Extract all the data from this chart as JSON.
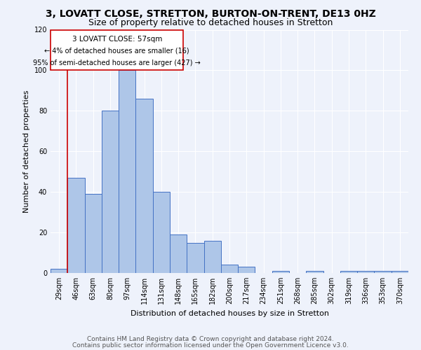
{
  "title": "3, LOVATT CLOSE, STRETTON, BURTON-ON-TRENT, DE13 0HZ",
  "subtitle": "Size of property relative to detached houses in Stretton",
  "xlabel": "Distribution of detached houses by size in Stretton",
  "ylabel": "Number of detached properties",
  "categories": [
    "29sqm",
    "46sqm",
    "63sqm",
    "80sqm",
    "97sqm",
    "114sqm",
    "131sqm",
    "148sqm",
    "165sqm",
    "182sqm",
    "200sqm",
    "217sqm",
    "234sqm",
    "251sqm",
    "268sqm",
    "285sqm",
    "302sqm",
    "319sqm",
    "336sqm",
    "353sqm",
    "370sqm"
  ],
  "values": [
    2,
    47,
    39,
    80,
    100,
    86,
    40,
    19,
    15,
    16,
    4,
    3,
    0,
    1,
    0,
    1,
    0,
    1,
    1,
    1,
    1
  ],
  "bar_color": "#aec6e8",
  "bar_edge_color": "#4472c4",
  "background_color": "#eef2fb",
  "ylim": [
    0,
    120
  ],
  "yticks": [
    0,
    20,
    40,
    60,
    80,
    100,
    120
  ],
  "property_label": "3 LOVATT CLOSE: 57sqm",
  "annotation_line1": "← 4% of detached houses are smaller (16)",
  "annotation_line2": "95% of semi-detached houses are larger (427) →",
  "vline_color": "#cc0000",
  "footer_line1": "Contains HM Land Registry data © Crown copyright and database right 2024.",
  "footer_line2": "Contains public sector information licensed under the Open Government Licence v3.0.",
  "title_fontsize": 10,
  "subtitle_fontsize": 9,
  "axis_label_fontsize": 8,
  "tick_fontsize": 7,
  "footer_fontsize": 6.5
}
